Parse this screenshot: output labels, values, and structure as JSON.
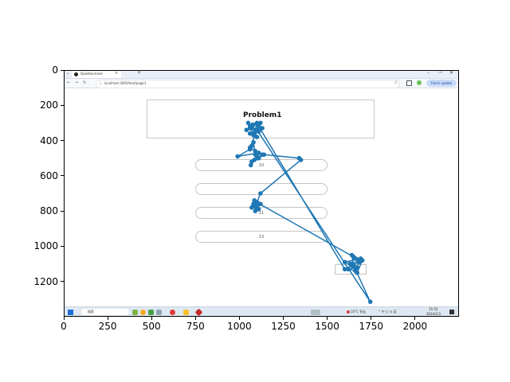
{
  "screenshot": {
    "tab_title": "Questionnaire",
    "tab_close": "×",
    "tab_new": "+",
    "url": "localhost:3000/test/page1",
    "update_button": "Finish update",
    "problem_title": "Problem1",
    "options": [
      "10",
      "",
      "11",
      "13"
    ],
    "taskbar_search": "搜索",
    "weather": "10°C 多云",
    "tray": "^ 中 ◫ ⊚ 英",
    "clock_time": "15:55",
    "clock_date": "2024/1/3"
  },
  "colors": {
    "series": "#1f77b4",
    "frame": "#000000",
    "browser_bar": "#e9eef7",
    "taskbar": "#dde8f2"
  },
  "chart_data": {
    "type": "line",
    "title": "",
    "xlabel": "",
    "ylabel": "",
    "xlim": [
      0,
      2250
    ],
    "ylim": [
      1400,
      0
    ],
    "y_inverted": true,
    "grid": false,
    "x_ticks": [
      0,
      250,
      500,
      750,
      1000,
      1250,
      1500,
      1750,
      2000
    ],
    "y_ticks": [
      0,
      200,
      400,
      600,
      800,
      1000,
      1200
    ],
    "series": [
      {
        "name": "",
        "x": [
          1050,
          1070,
          1040,
          1080,
          1060,
          1100,
          1090,
          1130,
          1110,
          1060,
          1080,
          1100,
          1075,
          1120,
          1060,
          1090,
          1130,
          1100,
          1070,
          1065,
          1085,
          1100,
          1110,
          990,
          1060,
          1070,
          1080,
          1090,
          1110,
          1140,
          1340,
          1350,
          1120,
          1100,
          1080,
          1070,
          1085,
          1100,
          1110,
          1090,
          1120,
          1100,
          1080,
          1095,
          1115,
          1650,
          1680,
          1640,
          1670,
          1620,
          1660,
          1690,
          1600,
          1650,
          1640,
          1700,
          1670,
          1630,
          1655,
          1745,
          1100,
          1060,
          1080,
          1110,
          1600,
          1640,
          1680,
          1660
        ],
        "y": [
          300,
          330,
          340,
          310,
          320,
          300,
          340,
          330,
          350,
          360,
          370,
          380,
          310,
          300,
          440,
          460,
          480,
          500,
          520,
          540,
          510,
          490,
          470,
          490,
          450,
          430,
          410,
          480,
          500,
          480,
          500,
          510,
          700,
          750,
          760,
          780,
          740,
          770,
          790,
          800,
          760,
          750,
          770,
          790,
          760,
          1060,
          1080,
          1100,
          1120,
          1130,
          1140,
          1070,
          1090,
          1110,
          1050,
          1080,
          1150,
          1100,
          1120,
          1315,
          340,
          330,
          360,
          320,
          1130,
          1110,
          1090,
          1070
        ]
      }
    ]
  }
}
